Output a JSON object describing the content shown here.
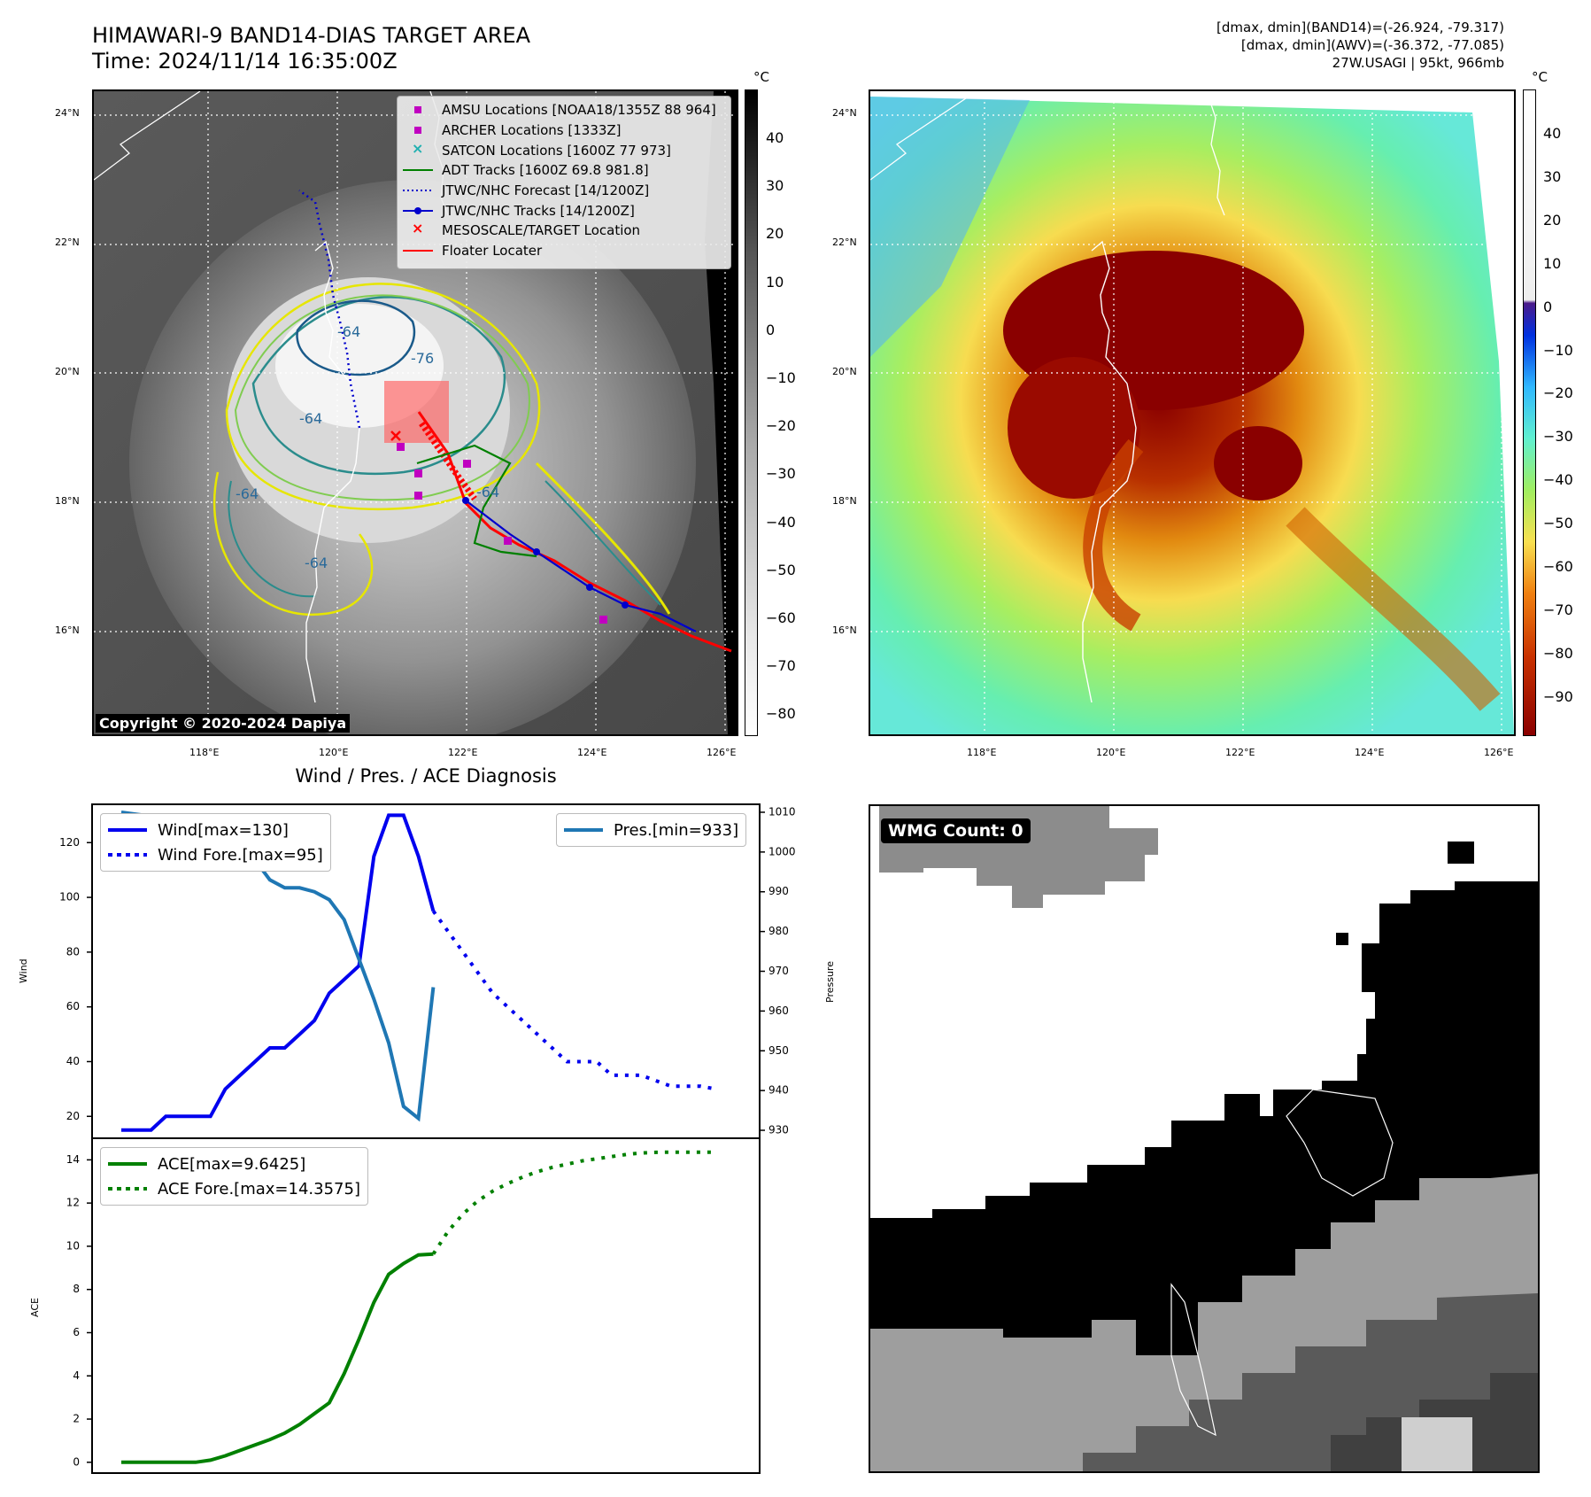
{
  "header": {
    "title_line1": "HIMAWARI-9 BAND14-DIAS TARGET AREA",
    "title_line2": "Time: 2024/11/14 16:35:00Z",
    "info_line1": "[dmax, dmin](BAND14)=(-26.924, -79.317)",
    "info_line2": "[dmax, dmin](AWV)=(-36.372, -77.085)",
    "info_line3": "27W.USAGI | 95kt, 966mb"
  },
  "map_axes": {
    "lat_labels": [
      "24°N",
      "22°N",
      "20°N",
      "18°N",
      "16°N"
    ],
    "lon_labels": [
      "118°E",
      "120°E",
      "122°E",
      "124°E",
      "126°E"
    ]
  },
  "ir_map": {
    "colorbar_unit": "°C",
    "colorbar_ticks": [
      "40",
      "30",
      "20",
      "10",
      "0",
      "−10",
      "−20",
      "−30",
      "−40",
      "−50",
      "−60",
      "−70",
      "−80"
    ],
    "contour_labels": [
      "-64",
      "-76",
      "-64",
      "-64",
      "-64",
      "-64"
    ],
    "copyright": "Copyright © 2020-2024 Dapiya",
    "legend": [
      {
        "label": "AMSU Locations [NOAA18/1355Z 88 964]",
        "color": "#c000c0",
        "kind": "square"
      },
      {
        "label": "ARCHER Locations [1333Z]",
        "color": "#c000c0",
        "kind": "square"
      },
      {
        "label": "SATCON Locations [1600Z 77 973]",
        "color": "#20b0b0",
        "kind": "x"
      },
      {
        "label": "ADT Tracks [1600Z 69.8 981.8]",
        "color": "#008000",
        "kind": "line"
      },
      {
        "label": "JTWC/NHC Forecast [14/1200Z]",
        "color": "#0000cc",
        "kind": "dotted"
      },
      {
        "label": "JTWC/NHC Tracks [14/1200Z]",
        "color": "#0000cc",
        "kind": "linemarker"
      },
      {
        "label": "MESOSCALE/TARGET Location",
        "color": "#ff0000",
        "kind": "x"
      },
      {
        "label": "Floater Locater",
        "color": "#ff0000",
        "kind": "line"
      }
    ]
  },
  "awv_map": {
    "colorbar_unit": "°C",
    "colorbar_ticks": [
      "40",
      "30",
      "20",
      "10",
      "0",
      "−10",
      "−20",
      "−30",
      "−40",
      "−50",
      "−60",
      "−70",
      "−80",
      "−90"
    ]
  },
  "wmg_panel": {
    "badge": "WMG Count: 0"
  },
  "chart_data": [
    {
      "type": "line",
      "title": "Wind / Pres. / ACE Diagnosis",
      "xlabel": "",
      "ylabel": "Wind",
      "ylabel_right": "Pressure",
      "ylim": [
        12,
        134
      ],
      "ylim_right": [
        928,
        1012
      ],
      "yticks": [
        20,
        40,
        60,
        80,
        100,
        120
      ],
      "yticks_right": [
        930,
        940,
        950,
        960,
        970,
        980,
        990,
        1000,
        1010
      ],
      "x": [
        0,
        1,
        2,
        3,
        4,
        5,
        6,
        7,
        8,
        9,
        10,
        11,
        12,
        13,
        14,
        15,
        16,
        17,
        18,
        19,
        20,
        21,
        22,
        23,
        24,
        25,
        26,
        27,
        28,
        29,
        30,
        31,
        32,
        33,
        34,
        35,
        36,
        37,
        38,
        39,
        40,
        41
      ],
      "series": [
        {
          "name": "Wind[max=130]",
          "axis": "left",
          "color": "#0000ee",
          "style": "solid",
          "x": [
            0,
            2,
            3,
            6,
            7,
            8,
            9,
            10,
            11,
            12,
            13,
            14,
            15,
            16,
            17,
            18,
            19,
            20,
            21
          ],
          "values": [
            15,
            15,
            20,
            20,
            30,
            35,
            40,
            45,
            45,
            50,
            55,
            65,
            70,
            75,
            115,
            130,
            130,
            115,
            95
          ]
        },
        {
          "name": "Wind Fore.[max=95]",
          "axis": "left",
          "color": "#0000ee",
          "style": "dotted",
          "x": [
            21,
            23,
            25,
            27,
            29,
            30,
            32,
            33,
            34,
            35,
            36,
            37,
            38,
            39,
            40
          ],
          "values": [
            95,
            80,
            65,
            55,
            45,
            40,
            40,
            35,
            35,
            35,
            33,
            31,
            31,
            31,
            30
          ]
        },
        {
          "name": "Pres.[min=933]",
          "axis": "right",
          "color": "#1f77b4",
          "style": "solid",
          "x": [
            0,
            2,
            3,
            4,
            5,
            6,
            7,
            8,
            9,
            10,
            11,
            12,
            13,
            14,
            15,
            16,
            17,
            18,
            19,
            20,
            21
          ],
          "values": [
            1010,
            1009,
            1009,
            1008,
            1007,
            1005,
            1004,
            1002,
            998,
            993,
            991,
            991,
            990,
            988,
            983,
            973,
            963,
            952,
            936,
            933,
            966
          ]
        }
      ]
    },
    {
      "type": "line",
      "xlabel": "",
      "ylabel": "ACE",
      "ylim": [
        -0.5,
        15
      ],
      "yticks": [
        0,
        2,
        4,
        6,
        8,
        10,
        12,
        14
      ],
      "series": [
        {
          "name": "ACE[max=9.6425]",
          "color": "#008000",
          "style": "solid",
          "x": [
            0,
            5,
            6,
            7,
            8,
            9,
            10,
            11,
            12,
            13,
            14,
            15,
            16,
            17,
            18,
            19,
            20,
            21
          ],
          "values": [
            0,
            0,
            0.1,
            0.3,
            0.55,
            0.8,
            1.05,
            1.35,
            1.75,
            2.25,
            2.75,
            4.1,
            5.7,
            7.4,
            8.7,
            9.2,
            9.6,
            9.6425
          ]
        },
        {
          "name": "ACE Fore.[max=14.3575]",
          "color": "#008000",
          "style": "dotted",
          "x": [
            21,
            22,
            23,
            24,
            25,
            26,
            27,
            28,
            29,
            30,
            31,
            32,
            33,
            34,
            35,
            36,
            37,
            38,
            39,
            40
          ],
          "values": [
            9.6425,
            10.7,
            11.5,
            12.1,
            12.55,
            12.9,
            13.2,
            13.45,
            13.65,
            13.8,
            13.95,
            14.05,
            14.15,
            14.25,
            14.32,
            14.35,
            14.3575,
            14.3575,
            14.3575,
            14.3575
          ]
        }
      ]
    }
  ]
}
